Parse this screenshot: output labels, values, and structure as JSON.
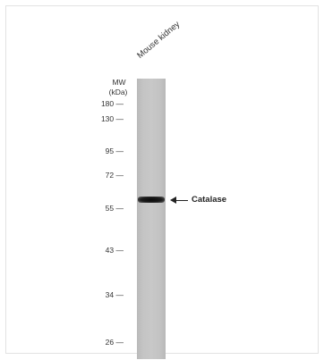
{
  "blot": {
    "lane_label": "Mouse kidney",
    "mw_title": "MW",
    "mw_unit": "(kDa)",
    "markers": [
      {
        "label": "180 —"
      },
      {
        "label": "130 —"
      },
      {
        "label": "95 —"
      },
      {
        "label": "72 —"
      },
      {
        "label": "55 —"
      },
      {
        "label": "43 —"
      },
      {
        "label": "34 —"
      },
      {
        "label": "26 —"
      }
    ],
    "band_label": "Catalase",
    "colors": {
      "lane": "#c6c6c6",
      "band": "#111111",
      "text": "#333333"
    }
  }
}
